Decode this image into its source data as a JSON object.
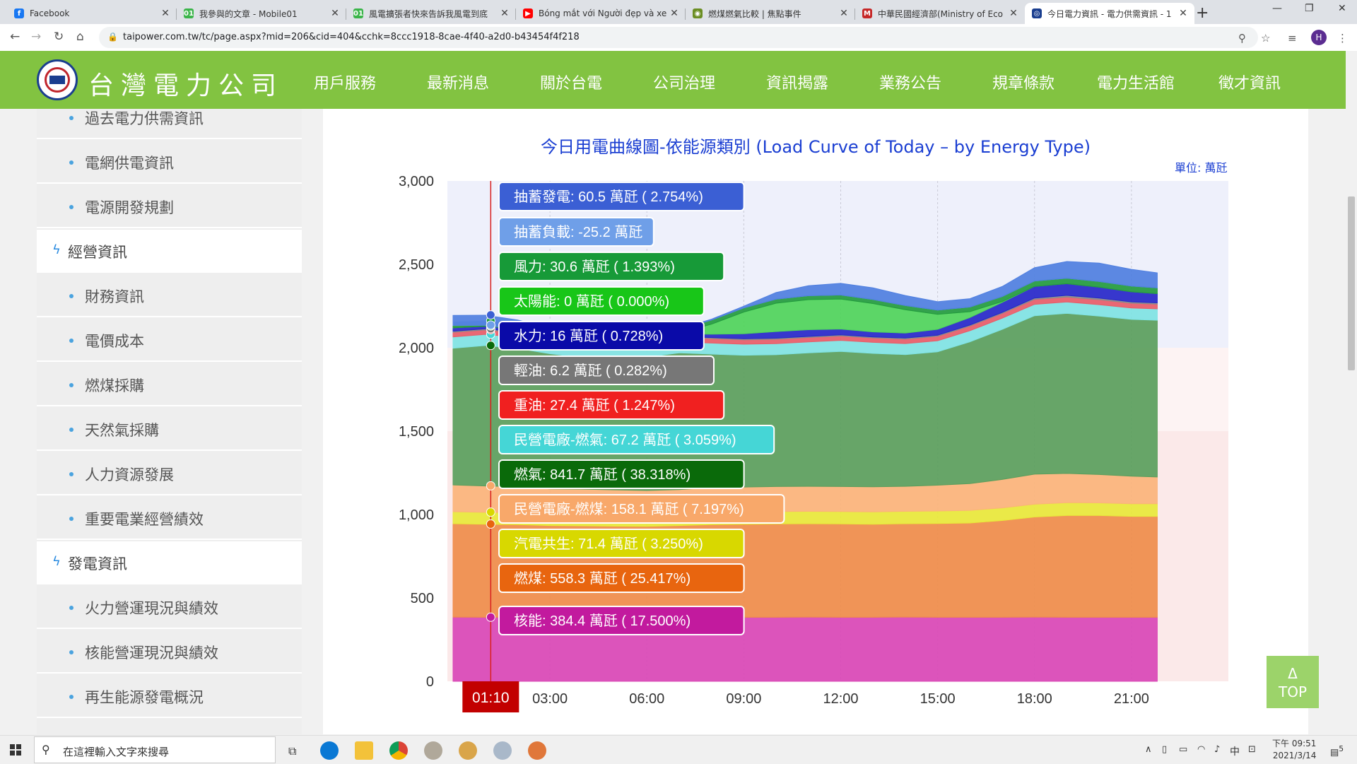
{
  "browser": {
    "tabs": [
      {
        "title": "Facebook",
        "icon": "facebook-icon",
        "color": "#1877f2",
        "glyph": "f"
      },
      {
        "title": "我參與的文章 - Mobile01",
        "icon": "mobile01-icon",
        "color": "#3bb54a",
        "glyph": "01"
      },
      {
        "title": "風電擴張者快來告訴我風電到底",
        "icon": "mobile01-icon",
        "color": "#3bb54a",
        "glyph": "01"
      },
      {
        "title": "Bóng mắt với Người đẹp và xe S",
        "icon": "youtube-icon",
        "color": "#ff0000",
        "glyph": "▶"
      },
      {
        "title": "燃煤燃氣比較 | 焦點事件",
        "icon": "eye-icon",
        "color": "#6b8e23",
        "glyph": "◉"
      },
      {
        "title": "中華民國經濟部(Ministry of Eco",
        "icon": "moea-icon",
        "color": "#c62828",
        "glyph": "M"
      },
      {
        "title": "今日電力資訊 - 電力供需資訊 - 1",
        "icon": "taipower-icon",
        "color": "#1a3e8f",
        "glyph": "◎"
      }
    ],
    "url": "taipower.com.tw/tc/page.aspx?mid=206&cid=404&cchk=8ccc1918-8cae-4f40-a2d0-b43454f4f218",
    "avatar": "H"
  },
  "site": {
    "brand": "台灣電力公司",
    "nav": [
      "用戶服務",
      "最新消息",
      "關於台電",
      "公司治理",
      "資訊揭露",
      "業務公告",
      "規章條款",
      "電力生活館",
      "徵才資訊"
    ]
  },
  "sidebar": {
    "items": [
      {
        "label": "過去電力供需資訊",
        "type": "sub"
      },
      {
        "label": "電網供電資訊",
        "type": "sub"
      },
      {
        "label": "電源開發規劃",
        "type": "sub"
      },
      {
        "label": "經營資訊",
        "type": "section"
      },
      {
        "label": "財務資訊",
        "type": "sub"
      },
      {
        "label": "電價成本",
        "type": "sub"
      },
      {
        "label": "燃煤採購",
        "type": "sub"
      },
      {
        "label": "天然氣採購",
        "type": "sub"
      },
      {
        "label": "人力資源發展",
        "type": "sub"
      },
      {
        "label": "重要電業經營績效",
        "type": "sub"
      },
      {
        "label": "發電資訊",
        "type": "section"
      },
      {
        "label": "火力營運現況與績效",
        "type": "sub"
      },
      {
        "label": "核能營運現況與績效",
        "type": "sub"
      },
      {
        "label": "再生能源發電概況",
        "type": "sub"
      }
    ]
  },
  "chart_data": {
    "type": "area",
    "title": "今日用電曲線圖-依能源類別 (Load Curve of Today – by Energy Type)",
    "unit_label": "單位: 萬瓩",
    "ylim": [
      0,
      3000
    ],
    "yticks": [
      0,
      500,
      1000,
      1500,
      2000,
      2500,
      3000
    ],
    "yticklabels": [
      "0",
      "500",
      "1,000",
      "1,500",
      "2,000",
      "2,500",
      "3,000"
    ],
    "xlim": [
      0,
      24
    ],
    "xticks": [
      3,
      6,
      9,
      12,
      15,
      18,
      21
    ],
    "xticklabels": [
      "03:00",
      "06:00",
      "09:00",
      "12:00",
      "15:00",
      "18:00",
      "21:00"
    ],
    "x": [
      0,
      1,
      2,
      3,
      4,
      5,
      6,
      7,
      8,
      9,
      10,
      11,
      12,
      13,
      14,
      15,
      16,
      17,
      18,
      19,
      20,
      21,
      21.8
    ],
    "series": [
      {
        "name": "核能",
        "color": "#d946b6",
        "values": [
          385,
          384,
          385,
          384,
          384,
          385,
          384,
          384,
          385,
          384,
          384,
          385,
          384,
          384,
          385,
          384,
          384,
          384,
          385,
          384,
          384,
          384,
          384
        ]
      },
      {
        "name": "燃煤",
        "color": "#ef8c4a",
        "values": [
          560,
          558,
          555,
          550,
          548,
          545,
          545,
          550,
          555,
          558,
          560,
          560,
          560,
          558,
          560,
          562,
          565,
          580,
          600,
          610,
          610,
          605,
          605
        ]
      },
      {
        "name": "汽電共生",
        "color": "#e8e83a",
        "values": [
          72,
          71,
          71,
          70,
          70,
          70,
          70,
          70,
          72,
          73,
          74,
          74,
          74,
          74,
          74,
          75,
          76,
          76,
          77,
          77,
          76,
          76,
          76
        ]
      },
      {
        "name": "民營電廠-燃煤",
        "color": "#fbb37a",
        "values": [
          160,
          158,
          155,
          150,
          150,
          148,
          145,
          145,
          150,
          150,
          150,
          150,
          150,
          150,
          150,
          155,
          160,
          170,
          180,
          175,
          170,
          165,
          160
        ]
      },
      {
        "name": "燃氣",
        "color": "#5a9e5c",
        "values": [
          820,
          842,
          830,
          810,
          790,
          780,
          800,
          820,
          800,
          790,
          790,
          800,
          810,
          800,
          790,
          800,
          850,
          900,
          950,
          960,
          950,
          940,
          940
        ]
      },
      {
        "name": "民營電廠-燃氣",
        "color": "#7fe3e3",
        "values": [
          68,
          67,
          67,
          66,
          65,
          65,
          65,
          66,
          66,
          66,
          66,
          66,
          66,
          66,
          66,
          66,
          67,
          67,
          68,
          68,
          68,
          68,
          68
        ]
      },
      {
        "name": "重油",
        "color": "#e85c68",
        "values": [
          28,
          27,
          27,
          27,
          27,
          27,
          27,
          27,
          27,
          27,
          27,
          27,
          27,
          27,
          27,
          27,
          28,
          29,
          30,
          30,
          30,
          29,
          29
        ]
      },
      {
        "name": "輕油",
        "color": "#8a8a8a",
        "values": [
          6,
          6,
          6,
          6,
          6,
          6,
          6,
          6,
          6,
          6,
          6,
          6,
          6,
          6,
          6,
          6,
          6,
          6,
          8,
          10,
          10,
          8,
          7
        ]
      },
      {
        "name": "水力",
        "color": "#2727c9",
        "values": [
          20,
          16,
          15,
          15,
          15,
          15,
          15,
          15,
          20,
          30,
          40,
          40,
          35,
          30,
          30,
          35,
          45,
          60,
          70,
          70,
          65,
          60,
          55
        ]
      },
      {
        "name": "太陽能",
        "color": "#4fd45a",
        "values": [
          0,
          0,
          0,
          0,
          0,
          0,
          0,
          5,
          60,
          130,
          170,
          180,
          180,
          170,
          140,
          90,
          35,
          5,
          0,
          0,
          0,
          0,
          0
        ]
      },
      {
        "name": "風力",
        "color": "#239b3e",
        "values": [
          35,
          31,
          30,
          30,
          28,
          27,
          26,
          25,
          25,
          25,
          24,
          24,
          24,
          24,
          25,
          26,
          28,
          30,
          32,
          33,
          34,
          35,
          35
        ]
      },
      {
        "name": "抽蓄負載",
        "color": "#8db4ee",
        "values": [
          -20,
          -25,
          -30,
          -30,
          -30,
          -28,
          -20,
          -5,
          0,
          0,
          0,
          0,
          0,
          0,
          0,
          0,
          0,
          0,
          0,
          0,
          0,
          0,
          0
        ]
      },
      {
        "name": "抽蓄發電",
        "color": "#4f7fe0",
        "values": [
          60,
          60,
          55,
          40,
          30,
          20,
          10,
          5,
          5,
          10,
          40,
          60,
          70,
          70,
          60,
          50,
          50,
          60,
          80,
          100,
          110,
          100,
          90
        ]
      }
    ],
    "marker_time": "01:10",
    "tooltip": [
      {
        "text": "抽蓄發電: 60.5 萬瓩 ( 2.754%)",
        "color": "#3b5fd4",
        "value": 60.5
      },
      {
        "text": "抽蓄負載: -25.2 萬瓩",
        "color": "#6f9fe8",
        "value": -25.2
      },
      {
        "text": "風力: 30.6 萬瓩 ( 1.393%)",
        "color": "#179a38",
        "value": 30.6
      },
      {
        "text": "太陽能: 0 萬瓩 ( 0.000%)",
        "color": "#18c618",
        "value": 0
      },
      {
        "text": "水力: 16 萬瓩 ( 0.728%)",
        "color": "#0a0aa8",
        "value": 16
      },
      {
        "text": "輕油: 6.2 萬瓩 ( 0.282%)",
        "color": "#777777",
        "value": 6.2
      },
      {
        "text": "重油: 27.4 萬瓩 ( 1.247%)",
        "color": "#f02020",
        "value": 27.4
      },
      {
        "text": "民營電廠-燃氣: 67.2 萬瓩 ( 3.059%)",
        "color": "#45d6d6",
        "value": 67.2
      },
      {
        "text": "燃氣: 841.7 萬瓩 ( 38.318%)",
        "color": "#0a6a0a",
        "value": 841.7
      },
      {
        "text": "民營電廠-燃煤: 158.1 萬瓩 ( 7.197%)",
        "color": "#f8a86a",
        "value": 158.1
      },
      {
        "text": "汽電共生: 71.4 萬瓩 ( 3.250%)",
        "color": "#d8d800",
        "value": 71.4
      },
      {
        "text": "燃煤: 558.3 萬瓩 ( 25.417%)",
        "color": "#e8650f",
        "value": 558.3
      },
      {
        "text": "核能: 384.4 萬瓩 ( 17.500%)",
        "color": "#c21a9e",
        "value": 384.4
      }
    ]
  },
  "page": {
    "top_label_arrow": "Δ",
    "top_label": "TOP"
  },
  "taskbar": {
    "search_placeholder": "在這裡輸入文字來搜尋",
    "time": "下午 09:51",
    "date": "2021/3/14",
    "ime": "中",
    "notif": "5"
  }
}
